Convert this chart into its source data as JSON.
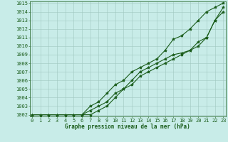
{
  "x": [
    0,
    1,
    2,
    3,
    4,
    5,
    6,
    7,
    8,
    9,
    10,
    11,
    12,
    13,
    14,
    15,
    16,
    17,
    18,
    19,
    20,
    21,
    22,
    23
  ],
  "line1": [
    1002,
    1002,
    1002,
    1002,
    1002,
    1002,
    1002,
    1002,
    1002.5,
    1003,
    1004,
    1005,
    1006,
    1007,
    1007.5,
    1008,
    1008.5,
    1009,
    1009.2,
    1009.5,
    1010.5,
    1011,
    1013,
    1014.5
  ],
  "line2": [
    1002,
    1002,
    1002,
    1002,
    1002,
    1002,
    1002,
    1003,
    1003.5,
    1004.5,
    1005.5,
    1006,
    1007,
    1007.5,
    1008,
    1008.5,
    1009.5,
    1010.8,
    1011.2,
    1012,
    1013,
    1014,
    1014.5,
    1015
  ],
  "line3": [
    1002,
    1002,
    1002,
    1002,
    1002,
    1002,
    1002,
    1002.5,
    1003,
    1003.5,
    1004.5,
    1005,
    1005.5,
    1006.5,
    1007,
    1007.5,
    1008,
    1008.5,
    1009,
    1009.5,
    1010,
    1011,
    1013,
    1014
  ],
  "bg_color": "#c8ece8",
  "grid_color": "#a0c8c0",
  "line_color": "#1a5c1a",
  "xlabel": "Graphe pression niveau de la mer (hPa)",
  "ylim": [
    1002,
    1015
  ],
  "xlim": [
    0,
    23
  ],
  "yticks": [
    1002,
    1003,
    1004,
    1005,
    1006,
    1007,
    1008,
    1009,
    1010,
    1011,
    1012,
    1013,
    1014,
    1015
  ],
  "xticks": [
    0,
    1,
    2,
    3,
    4,
    5,
    6,
    7,
    8,
    9,
    10,
    11,
    12,
    13,
    14,
    15,
    16,
    17,
    18,
    19,
    20,
    21,
    22,
    23
  ],
  "marker": "*",
  "linewidth": 0.8,
  "markersize": 3,
  "tick_fontsize": 5,
  "xlabel_fontsize": 5.5
}
